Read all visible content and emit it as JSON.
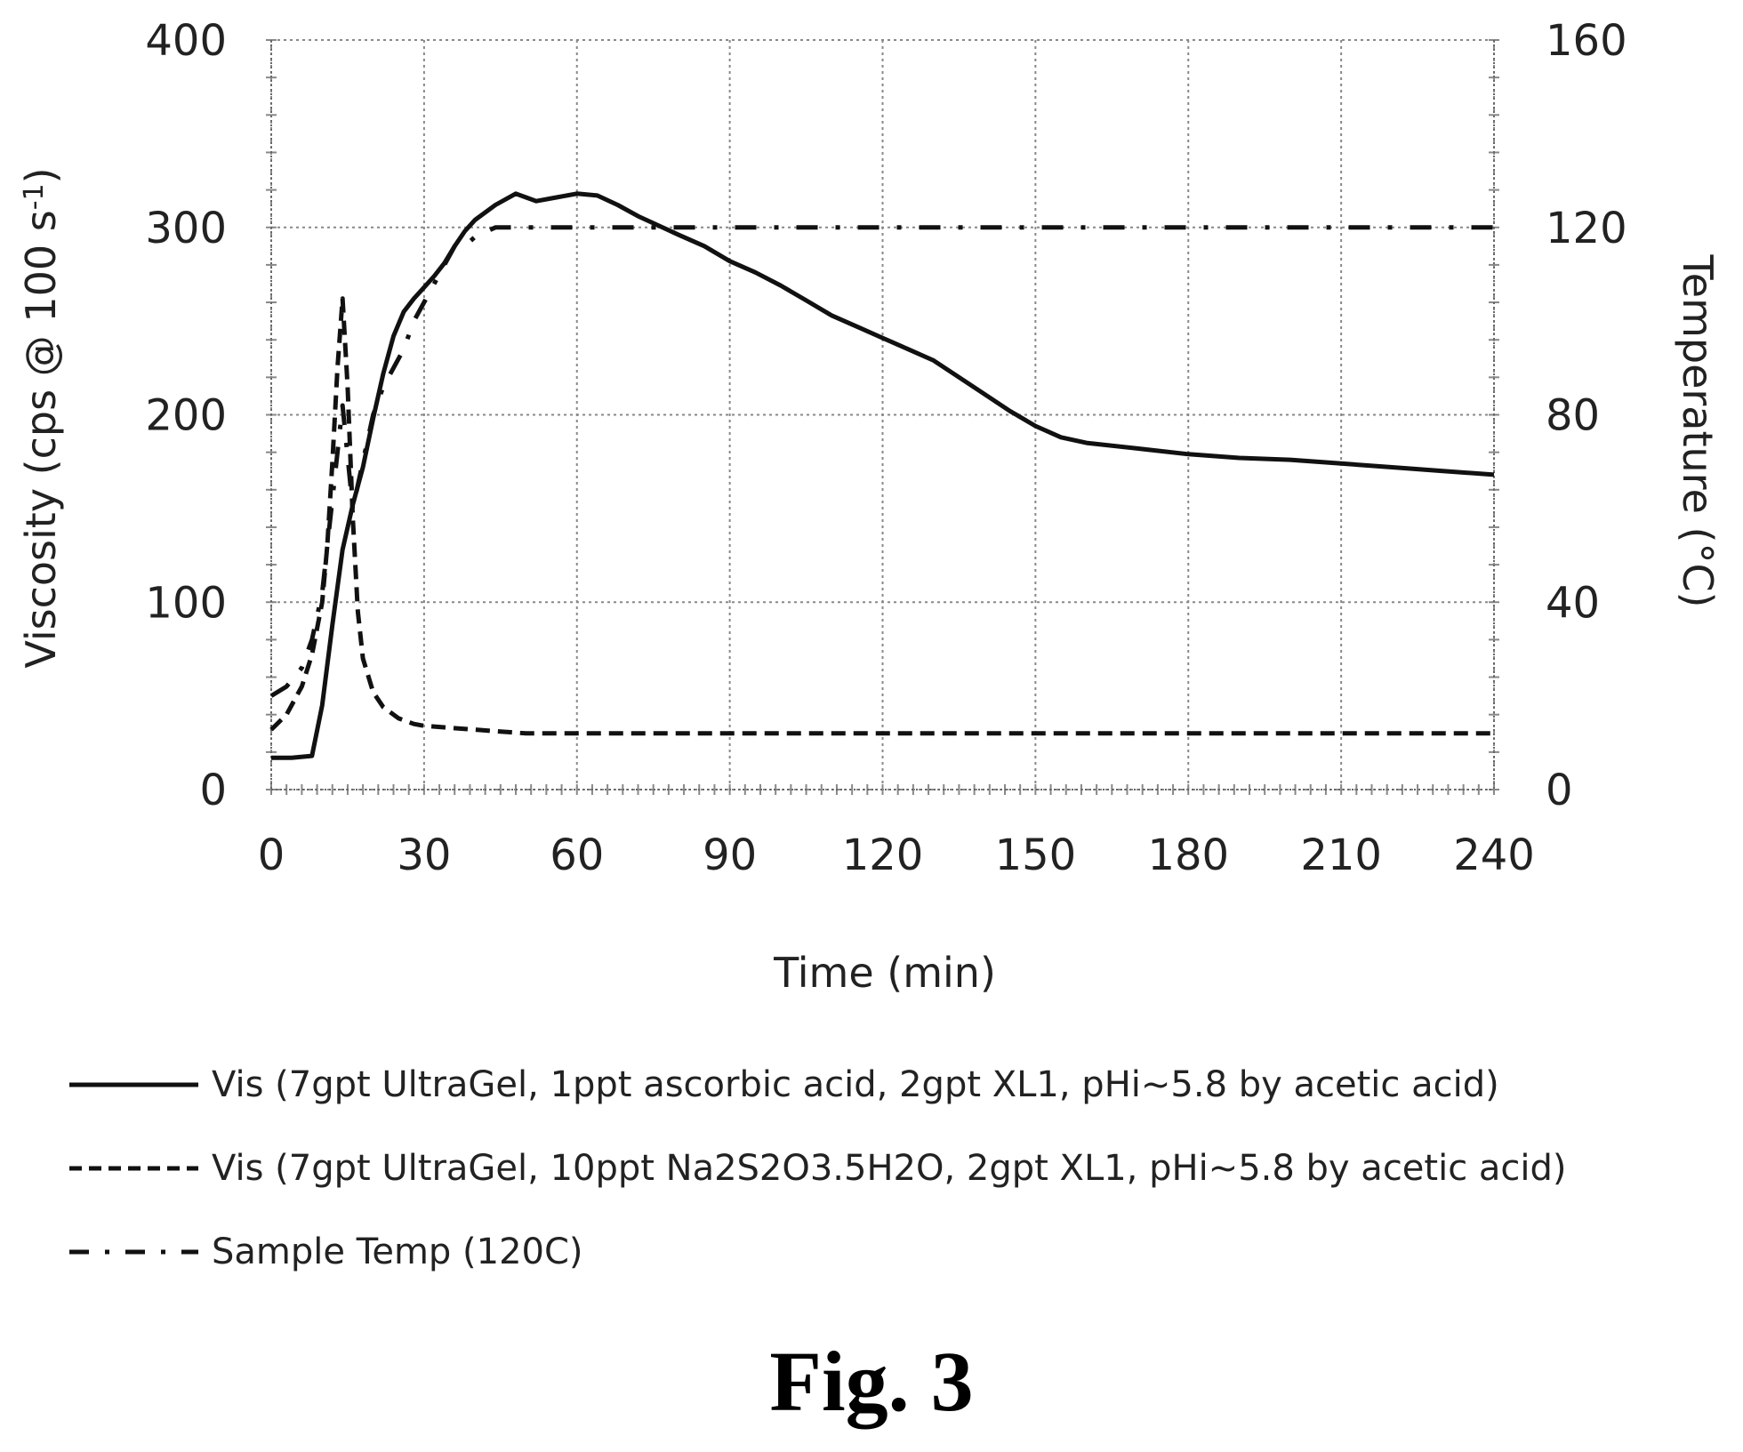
{
  "chart_data": {
    "type": "line",
    "xlabel": "Time (min)",
    "ylabel": "Viscosity (cps @ 100 s",
    "ylabel_sup": "-1",
    "ylabel_close": ")",
    "y2label": "Temperature (°C)",
    "xlim": [
      0,
      240
    ],
    "ylim": [
      0,
      400
    ],
    "y2lim": [
      0,
      160
    ],
    "x_ticks": [
      "0",
      "30",
      "60",
      "90",
      "120",
      "150",
      "180",
      "210",
      "240"
    ],
    "y_ticks": [
      "0",
      "100",
      "200",
      "300",
      "400"
    ],
    "y2_ticks": [
      "0",
      "40",
      "80",
      "120",
      "160"
    ],
    "grid": true,
    "legend_position": "bottom",
    "series": [
      {
        "name": "Vis (7gpt UltraGel, 1ppt ascorbic acid, 2gpt XL1, pHi~5.8 by acetic acid)",
        "axis": "left",
        "style": "solid",
        "x": [
          0,
          4,
          8,
          10,
          12,
          14,
          16,
          18,
          20,
          22,
          24,
          26,
          28,
          30,
          32,
          34,
          36,
          38,
          40,
          44,
          48,
          50,
          52,
          56,
          60,
          64,
          68,
          72,
          76,
          80,
          85,
          90,
          95,
          100,
          105,
          110,
          115,
          120,
          125,
          130,
          135,
          140,
          145,
          150,
          155,
          160,
          170,
          180,
          190,
          200,
          210,
          220,
          230,
          240
        ],
        "y": [
          17,
          17,
          18,
          45,
          88,
          128,
          152,
          172,
          198,
          222,
          242,
          255,
          262,
          268,
          274,
          281,
          290,
          298,
          304,
          312,
          318,
          316,
          314,
          316,
          318,
          317,
          312,
          306,
          301,
          296,
          290,
          282,
          276,
          269,
          261,
          253,
          247,
          241,
          235,
          229,
          220,
          211,
          202,
          194,
          188,
          185,
          182,
          179,
          177,
          176,
          174,
          172,
          170,
          168
        ]
      },
      {
        "name": "Vis (7gpt UltraGel, 10ppt Na2S2O3.5H2O, 2gpt XL1, pHi~5.8 by acetic acid)",
        "axis": "left",
        "style": "dashed",
        "x": [
          0,
          3,
          6,
          8,
          10,
          11,
          12,
          13,
          14,
          15,
          16,
          17,
          18,
          20,
          22,
          25,
          28,
          30,
          35,
          40,
          45,
          50,
          60,
          80,
          100,
          120,
          150,
          180,
          210,
          240
        ],
        "y": [
          32,
          40,
          55,
          72,
          100,
          130,
          175,
          225,
          262,
          215,
          145,
          95,
          70,
          52,
          44,
          38,
          35,
          34,
          33,
          32,
          31,
          30,
          30,
          30,
          30,
          30,
          30,
          30,
          30,
          30
        ]
      },
      {
        "name": "Sample Temp (120C)",
        "axis": "right",
        "style": "dashdot",
        "x": [
          0,
          3,
          6,
          8,
          10,
          12,
          14,
          16,
          18,
          20,
          22,
          24,
          26,
          28,
          30,
          32,
          34,
          36,
          38,
          40,
          42,
          44,
          46,
          48,
          60,
          90,
          120,
          150,
          180,
          210,
          240
        ],
        "y": [
          20,
          22,
          26,
          32,
          42,
          62,
          82,
          60,
          70,
          80,
          86,
          90,
          94,
          100,
          104,
          108,
          112,
          116,
          116,
          118,
          119,
          120,
          120,
          120,
          120,
          120,
          120,
          120,
          120,
          120,
          120
        ]
      }
    ]
  },
  "caption": "Fig. 3"
}
